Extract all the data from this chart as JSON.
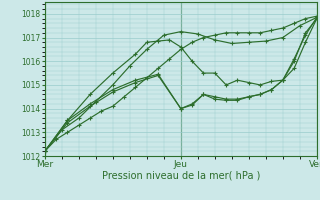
{
  "title": "Pression niveau de la mer( hPa )",
  "background_color": "#cce8e8",
  "grid_color": "#99cccc",
  "line_color": "#2d6e2d",
  "xlim": [
    0,
    48
  ],
  "ylim": [
    1012,
    1018.5
  ],
  "yticks": [
    1012,
    1013,
    1014,
    1015,
    1016,
    1017,
    1018
  ],
  "xtick_positions": [
    0,
    24,
    48
  ],
  "xtick_labels": [
    "Mer",
    "Jeu",
    "Ven"
  ],
  "series": [
    {
      "x": [
        0,
        2,
        4,
        6,
        8,
        10,
        12,
        14,
        16,
        18,
        20,
        22,
        24,
        26,
        28,
        30,
        32,
        34,
        36,
        38,
        40,
        42,
        44,
        46,
        48
      ],
      "y": [
        1012.2,
        1012.7,
        1013.0,
        1013.3,
        1013.6,
        1013.9,
        1014.1,
        1014.5,
        1014.9,
        1015.3,
        1015.7,
        1016.1,
        1016.5,
        1016.8,
        1017.0,
        1017.1,
        1017.2,
        1017.2,
        1017.2,
        1017.2,
        1017.3,
        1017.4,
        1017.6,
        1017.8,
        1017.9
      ]
    },
    {
      "x": [
        0,
        3,
        6,
        9,
        12,
        15,
        18,
        21,
        24,
        27,
        30,
        33,
        36,
        39,
        42,
        45,
        48
      ],
      "y": [
        1012.2,
        1013.1,
        1013.6,
        1014.3,
        1015.0,
        1015.8,
        1016.5,
        1017.1,
        1017.25,
        1017.15,
        1016.9,
        1016.75,
        1016.8,
        1016.85,
        1017.0,
        1017.5,
        1017.85
      ]
    },
    {
      "x": [
        0,
        4,
        8,
        12,
        16,
        18,
        20,
        22,
        24,
        26,
        28,
        30,
        32,
        34,
        36,
        38,
        40,
        42,
        44,
        46,
        48
      ],
      "y": [
        1012.2,
        1013.5,
        1014.6,
        1015.5,
        1016.3,
        1016.8,
        1016.85,
        1016.9,
        1016.6,
        1016.0,
        1015.5,
        1015.5,
        1015.0,
        1015.2,
        1015.1,
        1015.0,
        1015.15,
        1015.2,
        1015.7,
        1016.8,
        1017.8
      ]
    },
    {
      "x": [
        0,
        4,
        8,
        12,
        16,
        20,
        24,
        26,
        28,
        30,
        32,
        34,
        36,
        38,
        40,
        42,
        44,
        46,
        48
      ],
      "y": [
        1012.2,
        1013.4,
        1014.1,
        1014.7,
        1015.1,
        1015.4,
        1014.0,
        1014.2,
        1014.6,
        1014.5,
        1014.4,
        1014.4,
        1014.5,
        1014.6,
        1014.8,
        1015.2,
        1016.0,
        1017.2,
        1017.8
      ]
    },
    {
      "x": [
        0,
        4,
        8,
        12,
        16,
        20,
        24,
        26,
        28,
        30,
        32,
        34,
        36,
        38,
        40,
        42,
        44,
        46,
        48
      ],
      "y": [
        1012.2,
        1013.5,
        1014.2,
        1014.8,
        1015.2,
        1015.45,
        1014.0,
        1014.15,
        1014.6,
        1014.4,
        1014.35,
        1014.35,
        1014.5,
        1014.6,
        1014.8,
        1015.2,
        1016.1,
        1017.1,
        1017.85
      ]
    }
  ]
}
